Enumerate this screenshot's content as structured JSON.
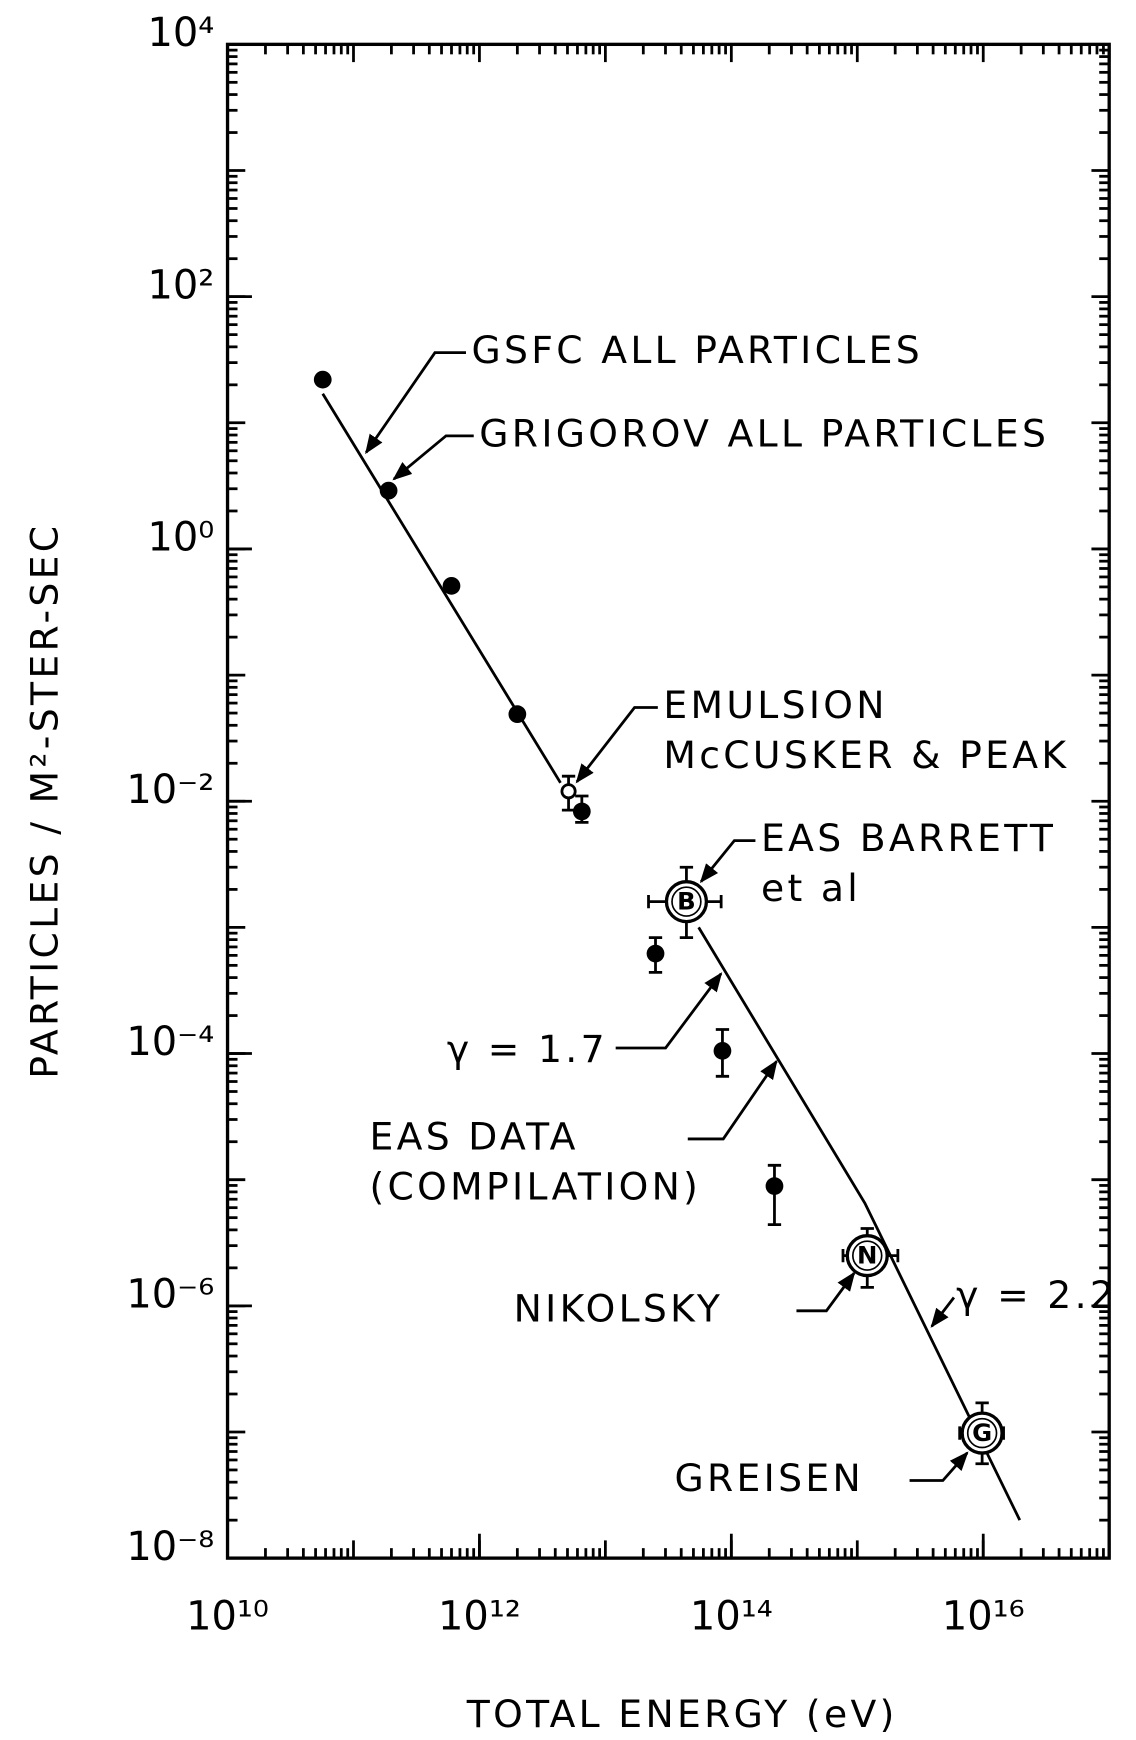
{
  "chart_data": {
    "type": "scatter",
    "xlabel": "TOTAL ENERGY (eV)",
    "ylabel": "PARTICLES / M²-STER-SEC",
    "xlog": true,
    "ylog": true,
    "color": "#000000",
    "xlim": [
      10000000000.0,
      1e+17
    ],
    "ylim": [
      1e-08,
      10000.0
    ],
    "xticks": [
      {
        "value": 10000000000.0,
        "label": "10¹⁰"
      },
      {
        "value": 1000000000000.0,
        "label": "10¹²"
      },
      {
        "value": 100000000000000.0,
        "label": "10¹⁴"
      },
      {
        "value": 1e+16,
        "label": "10¹⁶"
      }
    ],
    "yticks": [
      {
        "value": 1e-08,
        "label": "10⁻⁸"
      },
      {
        "value": 1e-06,
        "label": "10⁻⁶"
      },
      {
        "value": 0.0001,
        "label": "10⁻⁴"
      },
      {
        "value": 0.01,
        "label": "10⁻²"
      },
      {
        "value": 1,
        "label": "10⁰"
      },
      {
        "value": 100,
        "label": "10²"
      },
      {
        "value": 10000,
        "label": "10⁴"
      }
    ],
    "points": {
      "x": [
        57000000000.0,
        190000000000.0,
        600000000000.0,
        2000000000000.0,
        5100000000000.0,
        6500000000000.0,
        44000000000000.0,
        25000000000000.0,
        85000000000000.0,
        220000000000000.0,
        1200000000000000.0,
        9800000000000000.0
      ],
      "y": [
        22,
        2.9,
        0.51,
        0.049,
        0.012,
        0.0083,
        0.0016,
        0.00062,
        0.000105,
        8.9e-06,
        2.5e-06,
        9.8e-08
      ],
      "yhigh": [
        null,
        null,
        null,
        null,
        0.0158,
        0.011,
        0.003,
        0.00083,
        0.000155,
        1.3e-05,
        4.1e-06,
        1.7e-07
      ],
      "ylow": [
        null,
        null,
        null,
        null,
        0.0085,
        0.0068,
        0.00083,
        0.00044,
        6.6e-05,
        4.4e-06,
        1.4e-06,
        5.6e-08
      ],
      "xlow": [
        null,
        null,
        null,
        null,
        null,
        null,
        22000000000000.0,
        null,
        null,
        null,
        770000000000000.0,
        6500000000000000.0
      ],
      "xhigh": [
        null,
        null,
        null,
        null,
        null,
        null,
        83000000000000.0,
        null,
        null,
        null,
        2100000000000000.0,
        1.45e+16
      ],
      "marker": [
        "filled",
        "filled",
        "filled",
        "filled",
        "open",
        "filled",
        "lettered",
        "filled",
        "filled",
        "filled",
        "lettered",
        "lettered"
      ],
      "labels": [
        null,
        null,
        null,
        null,
        null,
        null,
        "B",
        null,
        null,
        null,
        "N",
        "G"
      ]
    },
    "lines": [
      {
        "x": [
          57000000000.0,
          4400000000000.0
        ],
        "y": [
          17,
          0.014
        ]
      },
      {
        "x": [
          55000000000000.0,
          1150000000000000.0,
          1.95e+16
        ],
        "y": [
          0.001,
          6.5e-06,
          2e-08
        ]
      }
    ],
    "annotations": [
      {
        "text": [
          "GSFC ALL PARTICLES"
        ]
      },
      {
        "text": [
          "GRIGOROV ALL PARTICLES"
        ]
      },
      {
        "text": [
          "EMULSION",
          "McCUSKER & PEAK"
        ]
      },
      {
        "text": [
          "EAS BARRETT",
          "et al"
        ]
      },
      {
        "text": [
          "γ = 1.7"
        ]
      },
      {
        "text": [
          "EAS DATA",
          "(COMPILATION)"
        ]
      },
      {
        "text": [
          "NIKOLSKY"
        ]
      },
      {
        "text": [
          "γ = 2.2"
        ]
      },
      {
        "text": [
          "GREISEN"
        ]
      }
    ]
  }
}
